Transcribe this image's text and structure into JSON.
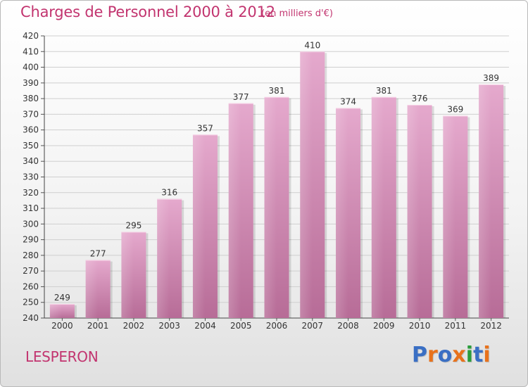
{
  "title": "Charges de Personnel 2000 à 2012",
  "unit_note": "(en milliers d'€)",
  "location": "LESPERON",
  "logo": {
    "text": "Proxiti",
    "letter_colors": [
      "#3a6fc4",
      "#e8721c",
      "#3a6fc4",
      "#e8721c",
      "#2a9d3b",
      "#3a6fc4",
      "#e8721c"
    ]
  },
  "colors": {
    "bar_light": "#e5a9cd",
    "bar_dark": "#b76c97",
    "text_accent": "#c2346f",
    "grid": "#cfcfcf"
  },
  "chart_data": {
    "type": "bar",
    "title": "Charges de Personnel 2000 à 2012",
    "subtitle": "(en milliers d'€)",
    "xlabel": "",
    "ylabel": "",
    "categories": [
      "2000",
      "2001",
      "2002",
      "2003",
      "2004",
      "2005",
      "2006",
      "2007",
      "2008",
      "2009",
      "2010",
      "2011",
      "2012"
    ],
    "values": [
      249,
      277,
      295,
      316,
      357,
      377,
      381,
      410,
      374,
      381,
      376,
      369,
      389
    ],
    "ylim": [
      240,
      420
    ],
    "ytick_step": 10,
    "grid": true,
    "legend": "none",
    "data_labels": true
  }
}
